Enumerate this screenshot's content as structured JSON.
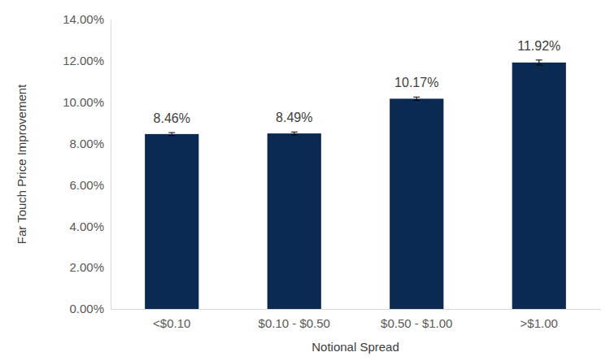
{
  "chart_data": {
    "type": "bar",
    "x_label": "Notional Spread",
    "y_label": "Far Touch Price Improvement",
    "categories": [
      "<$0.10",
      "$0.10 - $0.50",
      "$0.50 - $1.00",
      ">$1.00"
    ],
    "values": [
      8.46,
      8.49,
      10.17,
      11.92
    ],
    "value_labels": [
      "8.46%",
      "8.49%",
      "10.17%",
      "11.92%"
    ],
    "errors": [
      0.07,
      0.07,
      0.08,
      0.12
    ],
    "color": "#0b2a52",
    "ylim": [
      0,
      14
    ],
    "yticks": [
      {
        "value": 0,
        "label": "0.00%"
      },
      {
        "value": 2,
        "label": "2.00%"
      },
      {
        "value": 4,
        "label": "4.00%"
      },
      {
        "value": 6,
        "label": "6.00%"
      },
      {
        "value": 8,
        "label": "8.00%"
      },
      {
        "value": 10,
        "label": "10.00%"
      },
      {
        "value": 12,
        "label": "12.00%"
      },
      {
        "value": 14,
        "label": "14.00%"
      }
    ],
    "grid": false,
    "data_labels": true
  }
}
